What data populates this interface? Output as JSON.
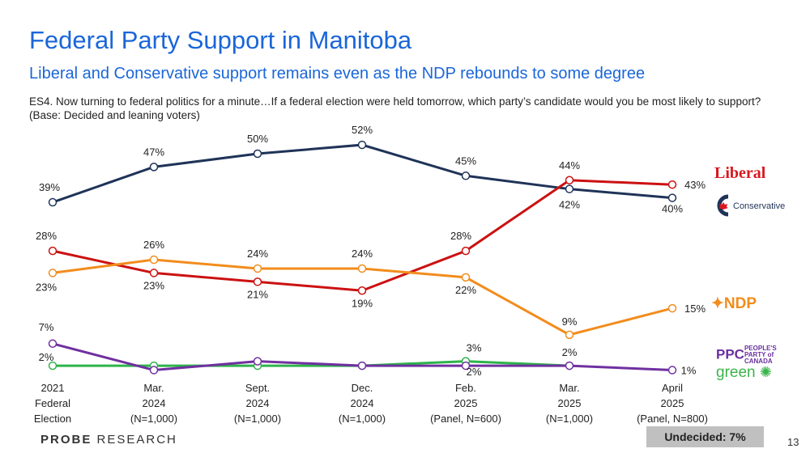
{
  "title": "Federal Party Support in Manitoba",
  "subtitle": "Liberal and Conservative support remains even as the NDP rebounds to some degree",
  "question": "ES4. Now turning to federal politics for a minute…If a federal election were held tomorrow, which party’s candidate would you be most likely to support? (Base: Decided and leaning voters)",
  "footer": {
    "brand_bold": "PROBE",
    "brand_rest": " RESEARCH",
    "undecided": "Undecided: 7%",
    "page_number": "13"
  },
  "logos": {
    "liberal": "Liberal",
    "conservative": "Conservative",
    "ndp": "NDP",
    "ppc": "PEOPLE'S PARTY of CANADA",
    "green": "green"
  },
  "chart_data": {
    "type": "line",
    "categories": [
      [
        "2021",
        "Federal",
        "Election"
      ],
      [
        "Mar.",
        "2024",
        "(N=1,000)"
      ],
      [
        "Sept.",
        "2024",
        "(N=1,000)"
      ],
      [
        "Dec.",
        "2024",
        "(N=1,000)"
      ],
      [
        "Feb.",
        "2025",
        "(Panel, N=600)"
      ],
      [
        "Mar.",
        "2025",
        "(N=1,000)"
      ],
      [
        "April",
        "2025",
        "(Panel, N=800)"
      ]
    ],
    "ylim": [
      0,
      55
    ],
    "grid": false,
    "series": [
      {
        "name": "Conservative",
        "color": "#1f3358",
        "values": [
          39,
          47,
          50,
          52,
          45,
          42,
          40
        ],
        "labeled": [
          true,
          true,
          true,
          true,
          true,
          true,
          true
        ]
      },
      {
        "name": "Liberal",
        "color": "#cc1111",
        "values": [
          28,
          23,
          21,
          19,
          28,
          44,
          43
        ],
        "labeled": [
          true,
          true,
          true,
          true,
          true,
          true,
          true
        ]
      },
      {
        "name": "NDP",
        "color": "#f28c1c",
        "values": [
          23,
          26,
          24,
          24,
          22,
          9,
          15
        ],
        "labeled": [
          true,
          true,
          true,
          true,
          true,
          true,
          true
        ]
      },
      {
        "name": "Green",
        "color": "#2db34a",
        "values": [
          2,
          2,
          2,
          2,
          3,
          2,
          null
        ],
        "labeled": [
          true,
          false,
          false,
          false,
          true,
          true,
          false
        ]
      },
      {
        "name": "PPC",
        "color": "#7030a0",
        "values": [
          7,
          1,
          3,
          2,
          2,
          2,
          1
        ],
        "labeled": [
          true,
          false,
          false,
          false,
          true,
          false,
          true
        ]
      }
    ]
  }
}
